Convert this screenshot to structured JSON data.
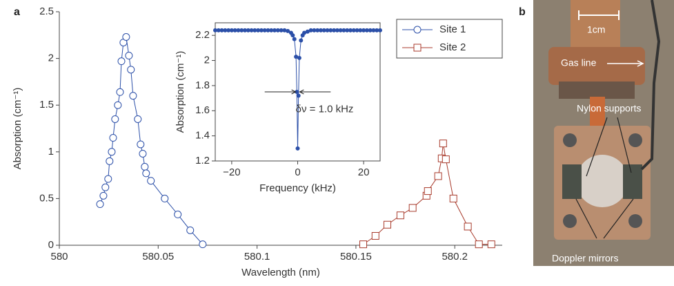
{
  "panel_labels": [
    "a",
    "b"
  ],
  "chart_data": [
    {
      "type": "line",
      "xlabel": "Wavelength (nm)",
      "ylabel": "Absorption (cm⁻¹)",
      "xlim": [
        580,
        580.224
      ],
      "ylim": [
        0,
        2.5
      ],
      "xticks": [
        580,
        580.05,
        580.1,
        580.15,
        580.2
      ],
      "yticks": [
        0,
        0.5,
        1,
        1.5,
        2,
        2.5
      ],
      "grid": false,
      "legend": "upper right",
      "series": [
        {
          "name": "Site 1",
          "color": "#2b4fa8",
          "marker": "circle",
          "x": [
            580.0206,
            580.0223,
            580.0233,
            580.0247,
            580.0254,
            580.0265,
            580.0272,
            580.0282,
            580.0296,
            580.0307,
            580.0314,
            580.0324,
            580.0338,
            580.0352,
            580.0362,
            580.0373,
            580.0397,
            580.0411,
            580.0422,
            580.0432,
            580.0439,
            580.0463,
            580.0533,
            580.0599,
            580.0662,
            580.0725
          ],
          "values": [
            0.44,
            0.53,
            0.62,
            0.71,
            0.9,
            1.0,
            1.15,
            1.35,
            1.5,
            1.64,
            1.97,
            2.17,
            2.23,
            2.03,
            1.88,
            1.6,
            1.35,
            1.08,
            0.98,
            0.84,
            0.77,
            0.69,
            0.5,
            0.33,
            0.16,
            0.01
          ]
        },
        {
          "name": "Site 2",
          "color": "#a83a2b",
          "marker": "square",
          "x": [
            580.1537,
            580.1599,
            580.1659,
            580.1725,
            580.1787,
            580.1857,
            580.1864,
            580.1916,
            580.1934,
            580.1941,
            580.1955,
            580.1993,
            580.2066,
            580.2122,
            580.2185
          ],
          "values": [
            0.01,
            0.1,
            0.22,
            0.32,
            0.4,
            0.53,
            0.58,
            0.74,
            0.93,
            1.09,
            0.92,
            0.5,
            0.2,
            0.01,
            0.01
          ]
        }
      ]
    },
    {
      "type": "line",
      "xlabel": "Frequency (kHz)",
      "ylabel": "Absorption (cm⁻¹)",
      "annotation": "δν = 1.0 kHz",
      "xlim": [
        -25,
        25
      ],
      "ylim": [
        1.2,
        2.3
      ],
      "xticks": [
        {
          "value": -20,
          "label": "−20"
        },
        0,
        20
      ],
      "yticks": [
        1.2,
        1.4,
        1.6,
        1.8,
        2,
        2.2
      ],
      "series": [
        {
          "color": "#2b4fa8",
          "marker": "dot",
          "x": [
            -25,
            -24,
            -23,
            -22,
            -21,
            -20,
            -19,
            -18,
            -17,
            -16,
            -15,
            -14,
            -13,
            -12,
            -11,
            -10,
            -9,
            -8,
            -7,
            -6,
            -5,
            -4,
            -3,
            -2,
            -1.5,
            -1,
            -0.5,
            -0.25,
            0,
            0.25,
            0.5,
            1,
            1.5,
            2,
            3,
            4,
            5,
            6,
            7,
            8,
            9,
            10,
            11,
            12,
            13,
            14,
            15,
            16,
            17,
            18,
            19,
            20,
            21,
            22,
            23,
            24,
            25
          ],
          "values": [
            2.24,
            2.24,
            2.24,
            2.24,
            2.24,
            2.24,
            2.24,
            2.24,
            2.24,
            2.24,
            2.24,
            2.24,
            2.24,
            2.24,
            2.24,
            2.24,
            2.24,
            2.24,
            2.24,
            2.24,
            2.24,
            2.24,
            2.235,
            2.22,
            2.2,
            2.17,
            2.03,
            1.75,
            1.3,
            1.72,
            2.02,
            2.16,
            2.2,
            2.22,
            2.23,
            2.24,
            2.24,
            2.24,
            2.24,
            2.24,
            2.24,
            2.24,
            2.24,
            2.24,
            2.24,
            2.24,
            2.24,
            2.24,
            2.24,
            2.24,
            2.24,
            2.24,
            2.24,
            2.24,
            2.24,
            2.24,
            2.24
          ]
        }
      ]
    }
  ],
  "photo": {
    "scale_label": "1cm",
    "labels": [
      "Gas line",
      "Nylon supports",
      "Doppler mirrors"
    ]
  }
}
